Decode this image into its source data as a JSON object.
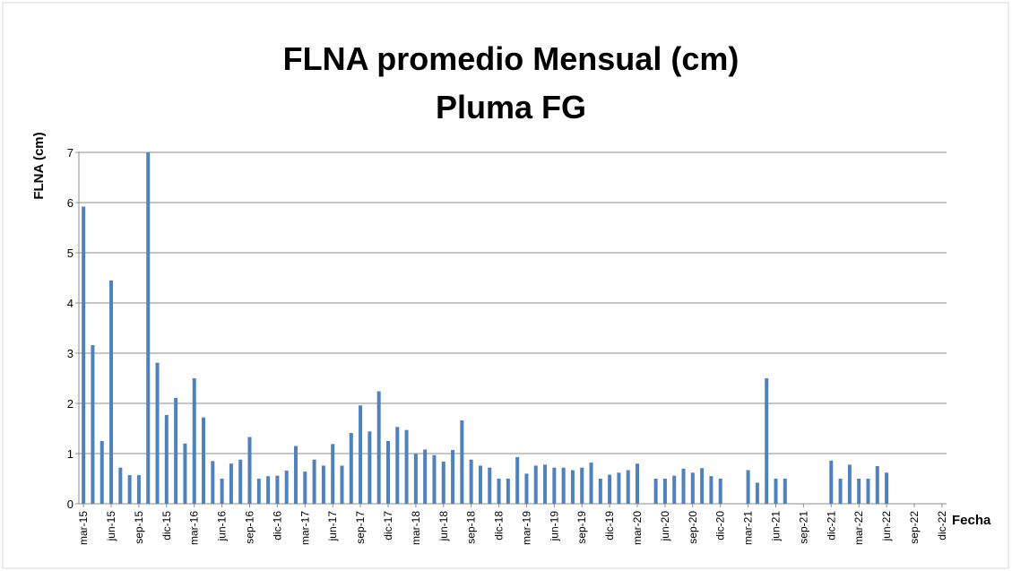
{
  "chart_data": {
    "type": "bar",
    "title": [
      "FLNA promedio Mensual (cm)",
      "Pluma FG"
    ],
    "y_label": "FLNA (cm)",
    "x_label": "Fecha",
    "color": "#4f81bd",
    "grid": true,
    "ylim": [
      0,
      7
    ],
    "yticks": [
      0,
      1,
      2,
      3,
      4,
      5,
      6,
      7
    ],
    "categories": [
      "mar-15",
      null,
      null,
      "jun-15",
      null,
      null,
      "sep-15",
      null,
      null,
      "dic-15",
      null,
      null,
      "mar-16",
      null,
      null,
      "jun-16",
      null,
      null,
      "sep-16",
      null,
      null,
      "dic-16",
      null,
      null,
      "mar-17",
      null,
      null,
      "jun-17",
      null,
      null,
      "sep-17",
      null,
      null,
      "dic-17",
      null,
      null,
      "mar-18",
      null,
      null,
      "jun-18",
      null,
      null,
      "sep-18",
      null,
      null,
      "dic-18",
      null,
      null,
      "mar-19",
      null,
      null,
      "jun-19",
      null,
      null,
      "sep-19",
      null,
      null,
      "dic-19",
      null,
      null,
      "mar-20",
      null,
      null,
      "jun-20",
      null,
      null,
      "sep-20",
      null,
      null,
      "dic-20",
      null,
      null,
      "mar-21",
      null,
      null,
      "jun-21",
      null,
      null,
      "sep-21",
      null,
      null,
      "dic-21",
      null,
      null,
      "mar-22",
      null,
      null,
      "jun-22",
      null,
      null,
      "sep-22",
      null,
      null,
      "dic-22"
    ],
    "values": [
      5.92,
      3.16,
      1.25,
      4.45,
      0.72,
      0.57,
      0.57,
      7.0,
      2.81,
      1.77,
      2.11,
      1.2,
      2.5,
      1.72,
      0.85,
      0.5,
      0.8,
      0.88,
      1.33,
      0.5,
      0.55,
      0.56,
      0.66,
      1.15,
      0.64,
      0.88,
      0.76,
      1.19,
      0.76,
      1.41,
      1.96,
      1.44,
      2.24,
      1.25,
      1.53,
      1.47,
      1.0,
      1.08,
      0.97,
      0.84,
      1.07,
      1.66,
      0.88,
      0.76,
      0.72,
      0.5,
      0.5,
      0.93,
      0.6,
      0.76,
      0.78,
      0.72,
      0.72,
      0.67,
      0.72,
      0.82,
      0.5,
      0.58,
      0.62,
      0.67,
      0.8,
      null,
      0.5,
      0.5,
      0.56,
      0.7,
      0.62,
      0.71,
      0.55,
      0.5,
      null,
      null,
      0.67,
      0.42,
      2.5,
      0.5,
      0.5,
      null,
      null,
      null,
      null,
      0.86,
      0.5,
      0.78,
      0.5,
      0.5,
      0.75,
      0.62,
      null,
      null,
      null,
      null,
      null,
      null
    ]
  }
}
